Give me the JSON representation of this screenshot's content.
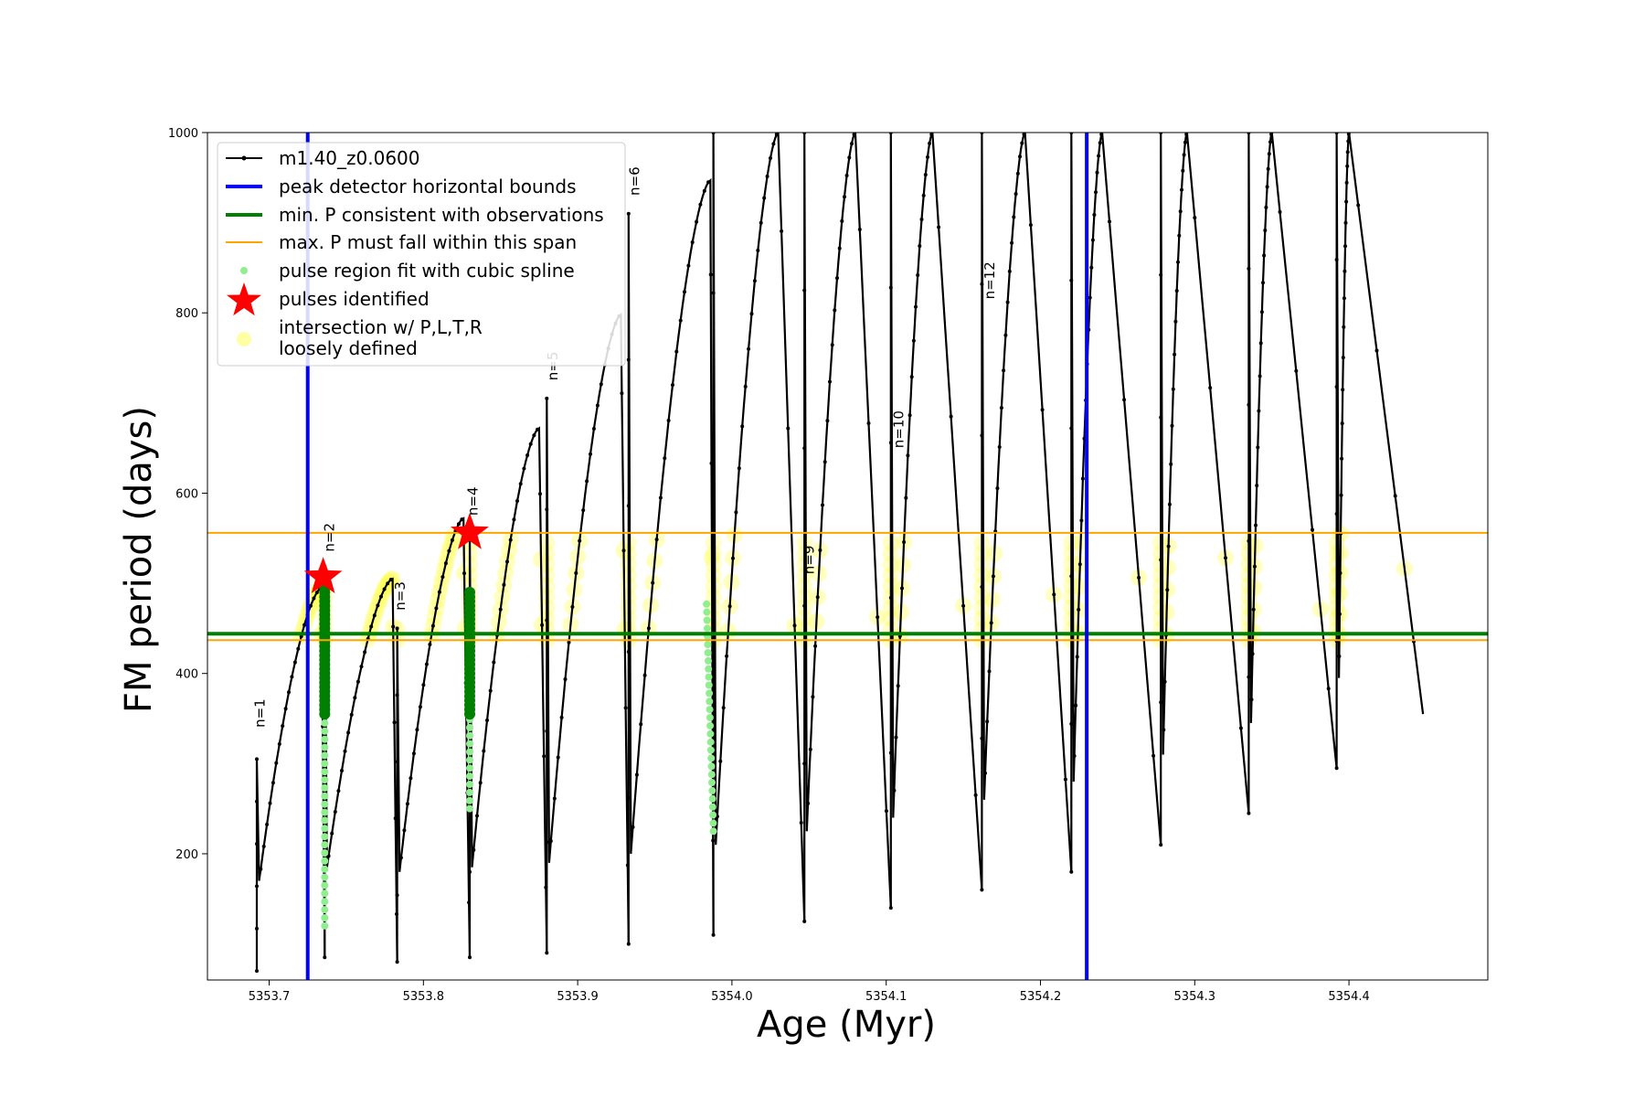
{
  "chart_data": {
    "type": "line",
    "xlabel": "Age (Myr)",
    "ylabel": "FM period (days)",
    "xlim": [
      5353.66,
      5354.49
    ],
    "ylim": [
      60,
      1000
    ],
    "xticks": [
      "5353.7",
      "5353.8",
      "5353.9",
      "5354.0",
      "5354.1",
      "5354.2",
      "5354.3",
      "5354.4"
    ],
    "yticks": [
      "200",
      "400",
      "600",
      "800",
      "1000"
    ],
    "legend": {
      "placement": "upper-left",
      "entries": [
        {
          "label": "m1.40_z0.0600",
          "style": "black-line-dots",
          "color": "#000000"
        },
        {
          "label": "peak detector horizontal bounds",
          "style": "thick-line",
          "color": "#0000ff"
        },
        {
          "label": "min. P consistent with observations",
          "style": "thick-line",
          "color": "#008000"
        },
        {
          "label": "max. P must fall within this span",
          "style": "thin-line",
          "color": "#ffa500"
        },
        {
          "label": "pulse region fit with cubic spline",
          "style": "dot",
          "color": "#90ee90"
        },
        {
          "label": "pulses identified",
          "style": "star",
          "color": "#ff0000"
        },
        {
          "label": "intersection w/ P,L,T,R",
          "label2": "loosely defined",
          "style": "big-dot",
          "color": "#ffff99"
        }
      ]
    },
    "vlines": [
      {
        "x": 5353.725,
        "color": "#0000ff",
        "name": "peak detector horizontal bounds"
      },
      {
        "x": 5354.23,
        "color": "#0000ff",
        "name": "peak detector horizontal bounds"
      }
    ],
    "hlines": [
      {
        "y": 444,
        "color": "#008000",
        "name": "min. P consistent with observations"
      },
      {
        "y": 437,
        "color": "#ffa500",
        "name": "max. P lower bound"
      },
      {
        "y": 556,
        "color": "#ffa500",
        "name": "max. P upper bound"
      }
    ],
    "pulses": [
      {
        "x0": 5353.692,
        "min": 70,
        "max": 305,
        "peakX": 5353.734,
        "peakY": 495,
        "end": 5353.736,
        "bottom": 85
      },
      {
        "x0": 5353.736,
        "min": 85,
        "max": 500,
        "peakX": 5353.78,
        "peakY": 505,
        "end": 5353.783,
        "bottom": 80
      },
      {
        "x0": 5353.783,
        "min": 80,
        "max": 450,
        "peakX": 5353.826,
        "peakY": 572,
        "end": 5353.83,
        "bottom": 85
      },
      {
        "x0": 5353.83,
        "min": 85,
        "max": 560,
        "peakX": 5353.875,
        "peakY": 672,
        "end": 5353.88,
        "bottom": 90
      },
      {
        "x0": 5353.88,
        "min": 90,
        "max": 705,
        "peakX": 5353.928,
        "peakY": 798,
        "end": 5353.933,
        "bottom": 100
      },
      {
        "x0": 5353.933,
        "min": 100,
        "max": 910,
        "peakX": 5353.986,
        "peakY": 947,
        "end": 5353.988,
        "bottom": 110
      },
      {
        "x0": 5353.988,
        "min": 110,
        "max": 1000,
        "peakX": 5354.03,
        "peakY": 1000,
        "end": 5354.047,
        "bottom": 125
      },
      {
        "x0": 5354.047,
        "min": 125,
        "max": 1000,
        "peakX": 5354.08,
        "peakY": 1000,
        "end": 5354.103,
        "bottom": 140
      },
      {
        "x0": 5354.103,
        "min": 140,
        "max": 1000,
        "peakX": 5354.13,
        "peakY": 1000,
        "end": 5354.162,
        "bottom": 160
      },
      {
        "x0": 5354.162,
        "min": 160,
        "max": 1000,
        "peakX": 5354.19,
        "peakY": 1000,
        "end": 5354.22,
        "bottom": 180
      },
      {
        "x0": 5354.22,
        "min": 180,
        "max": 1000,
        "peakX": 5354.24,
        "peakY": 1000,
        "end": 5354.278,
        "bottom": 210
      },
      {
        "x0": 5354.278,
        "min": 210,
        "max": 1000,
        "peakX": 5354.295,
        "peakY": 1000,
        "end": 5354.335,
        "bottom": 245
      },
      {
        "x0": 5354.335,
        "min": 245,
        "max": 1000,
        "peakX": 5354.35,
        "peakY": 1000,
        "end": 5354.392,
        "bottom": 295
      },
      {
        "x0": 5354.392,
        "min": 295,
        "max": 1000,
        "peakX": 5354.4,
        "peakY": 1000,
        "end": 5354.448,
        "bottom": 355
      }
    ],
    "annotations": [
      {
        "text": "n=1",
        "x": 5353.697,
        "y": 340
      },
      {
        "text": "n=2",
        "x": 5353.742,
        "y": 535
      },
      {
        "text": "n=3",
        "x": 5353.788,
        "y": 470
      },
      {
        "text": "n=4",
        "x": 5353.835,
        "y": 575
      },
      {
        "text": "n=5",
        "x": 5353.887,
        "y": 725
      },
      {
        "text": "n=6",
        "x": 5353.94,
        "y": 930
      },
      {
        "text": "n=9",
        "x": 5354.053,
        "y": 510
      },
      {
        "text": "n=10",
        "x": 5354.111,
        "y": 650
      },
      {
        "text": "n=12",
        "x": 5354.17,
        "y": 815
      }
    ],
    "stars": [
      {
        "x": 5353.735,
        "y": 507
      },
      {
        "x": 5353.83,
        "y": 556
      }
    ]
  }
}
